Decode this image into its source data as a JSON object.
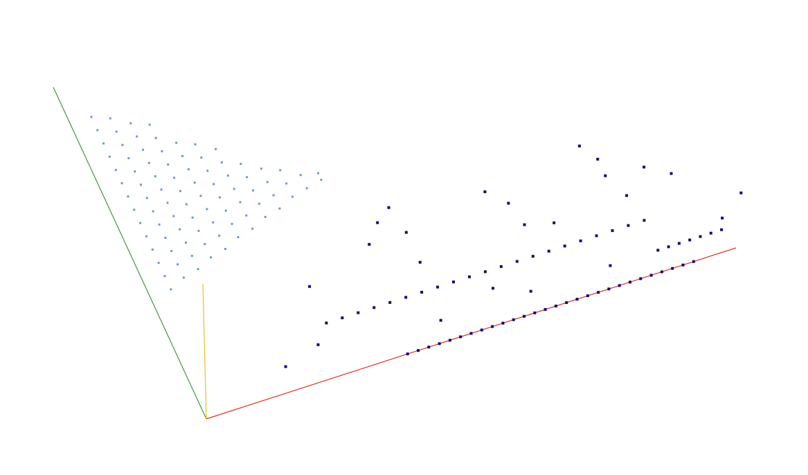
{
  "chart_data": {
    "type": "scatter3d",
    "xlim": [
      0,
      100
    ],
    "ylim": [
      0,
      100
    ],
    "zlim": [
      0,
      100
    ],
    "axis_colors": {
      "x": "#e0301e",
      "y": "#3a9a3a",
      "z": "#e8c020"
    },
    "series": [
      {
        "color": "#6a95e6",
        "x": [
          4,
          4,
          4,
          4,
          4,
          4,
          4,
          4,
          4,
          4,
          4,
          4,
          4,
          4,
          7,
          7,
          7,
          7,
          7,
          7,
          7,
          7,
          7,
          7,
          7,
          7,
          7,
          10,
          10,
          10,
          10,
          10,
          10,
          10,
          10,
          10,
          10,
          10,
          10,
          13,
          13,
          13,
          13,
          13,
          13,
          13,
          13,
          13,
          13,
          13,
          16,
          16,
          16,
          16,
          16,
          16,
          16,
          16,
          16,
          19,
          19,
          19,
          19,
          19,
          19,
          19,
          19,
          22,
          22,
          22,
          22,
          22,
          22,
          22,
          25,
          25,
          25,
          25,
          25,
          28,
          28,
          28,
          28,
          31,
          31,
          31,
          34,
          34,
          37,
          37
        ],
        "y": [
          37,
          41,
          45,
          49,
          53,
          57,
          61,
          65,
          69,
          73,
          77,
          81,
          85,
          89,
          39,
          43,
          47,
          51,
          55,
          59,
          63,
          67,
          71,
          75,
          79,
          83,
          87,
          40,
          44,
          48,
          52,
          56,
          60,
          64,
          68,
          72,
          76,
          80,
          84,
          42,
          46,
          50,
          54,
          58,
          62,
          66,
          70,
          74,
          78,
          82,
          43,
          47,
          51,
          55,
          59,
          63,
          67,
          71,
          75,
          45,
          49,
          53,
          57,
          61,
          65,
          69,
          73,
          46,
          50,
          54,
          58,
          62,
          66,
          70,
          48,
          52,
          56,
          60,
          64,
          49,
          53,
          57,
          61,
          51,
          55,
          59,
          52,
          56,
          53,
          55
        ]
      },
      {
        "color": "#0c0c78",
        "x": [
          38,
          40,
          42,
          44,
          46,
          48,
          50,
          52,
          54,
          56,
          58,
          60,
          62,
          64,
          66,
          68,
          70,
          72,
          74,
          76,
          78,
          80,
          82,
          84,
          86,
          88,
          90,
          92,
          27,
          30,
          33,
          36,
          39,
          42,
          45,
          48,
          51,
          54,
          57,
          60,
          63,
          66,
          69,
          72,
          75,
          78,
          81,
          84,
          87,
          87,
          89,
          91,
          93,
          95,
          97,
          99,
          43,
          46,
          47,
          40,
          47,
          63,
          66,
          82,
          84,
          84,
          91,
          95,
          105,
          100,
          24,
          17,
          27,
          46,
          57,
          63,
          78,
          72,
          67,
          86
        ],
        "y": [
          0,
          0,
          0,
          0,
          0,
          0,
          0,
          0,
          0,
          0,
          0,
          0,
          0,
          0,
          0,
          0,
          0,
          0,
          0,
          0,
          0,
          0,
          0,
          0,
          0,
          0,
          0,
          0,
          15,
          15,
          15,
          15,
          15,
          15,
          15,
          15,
          15,
          15,
          15,
          15,
          15,
          15,
          15,
          15,
          15,
          15,
          15,
          15,
          15,
          6,
          6,
          6,
          6,
          6,
          6,
          6,
          37,
          40,
          32,
          32,
          23,
          36,
          31,
          40,
          35,
          30,
          29,
          25,
          14,
          9,
          10,
          7,
          26,
          6,
          10,
          6,
          6,
          22,
          24,
          23
        ]
      }
    ]
  }
}
